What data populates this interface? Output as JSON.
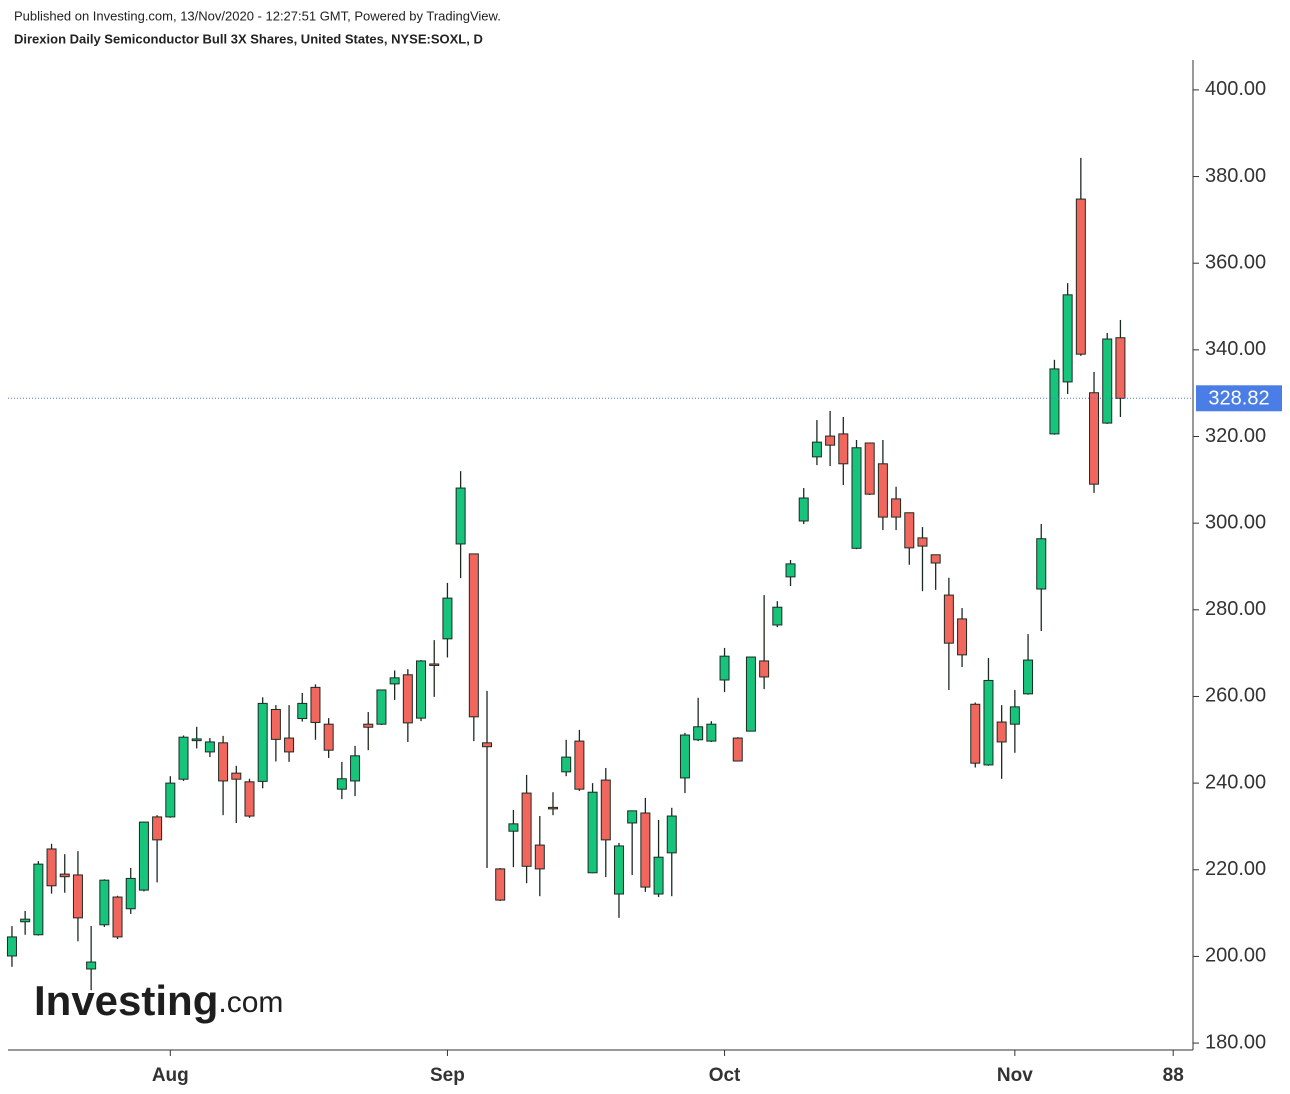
{
  "chart_data": {
    "type": "candlestick",
    "subtitle": "Published on Investing.com, 13/Nov/2020 - 12:27:51 GMT, Powered by TradingView.",
    "title": "Direxion Daily Semiconductor Bull 3X Shares, United States, NYSE:SOXL, D",
    "watermark": {
      "brand": "Investing",
      "suffix": ".com"
    },
    "open": [
      200.1,
      208,
      205,
      224.8,
      219,
      218.8,
      197.1,
      207.3,
      213.7,
      211,
      215.3,
      232.2,
      232.2,
      240.9,
      249.8,
      247.2,
      249.3,
      242.3,
      240.3,
      240.4,
      257,
      250.4,
      254.9,
      262.1,
      253.6,
      238.6,
      240.5,
      253.6,
      253.6,
      262.9,
      265,
      255,
      267.5,
      273.3,
      295.2,
      292.9,
      249.3,
      220.2,
      228.9,
      237.7,
      225.7,
      234.4,
      242.6,
      249.7,
      219.3,
      240.7,
      214.4,
      230.8,
      233.1,
      214.4,
      223.9,
      241.2,
      250,
      249.7,
      263.8,
      250.4,
      252,
      268.2,
      276.5,
      287.6,
      300.5,
      315.3,
      320.1,
      320.6,
      294.2,
      318.5,
      313.7,
      305.6,
      302.4,
      296.6,
      292.7,
      283.4,
      277.9,
      258.2,
      244.2,
      254.1,
      253.6,
      260.6,
      284.8,
      320.6,
      332.6,
      374.8,
      330.1,
      323.1,
      342.8
    ],
    "high": [
      207,
      210.5,
      222,
      226,
      223.6,
      224.3,
      207,
      217.8,
      214,
      220.4,
      231.1,
      232.6,
      241.6,
      251,
      253,
      250.4,
      250.9,
      244,
      241,
      259.8,
      258,
      258,
      260.8,
      262.8,
      255,
      244.9,
      248.6,
      256.4,
      261.6,
      266,
      266.3,
      268.4,
      273,
      286.2,
      312,
      293,
      261.3,
      220.4,
      233.8,
      241.9,
      232.4,
      237.9,
      250,
      252.3,
      240,
      243.5,
      226.2,
      233.6,
      236.6,
      231.5,
      234.3,
      251.6,
      259.7,
      254.3,
      271.2,
      250.6,
      269.1,
      283.4,
      282,
      291.5,
      308.1,
      323.8,
      325.9,
      324.5,
      319.2,
      318.6,
      319.2,
      308.4,
      302.4,
      299.1,
      292.7,
      287.4,
      280.4,
      258.6,
      268.9,
      258,
      261.5,
      274.4,
      299.8,
      337.7,
      355.4,
      384.3,
      334.9,
      343.9,
      346.9
    ],
    "low": [
      197.6,
      205,
      204.8,
      214.5,
      214.7,
      203.5,
      192.2,
      206.8,
      204,
      209.8,
      215,
      217.1,
      232,
      240.5,
      248,
      246,
      232.6,
      230.8,
      232,
      238.8,
      245,
      244.9,
      254.2,
      250,
      245.8,
      236.3,
      237,
      247.6,
      253.4,
      259.2,
      249.5,
      254.3,
      259.9,
      269,
      287.3,
      249.7,
      220.4,
      212.8,
      220.6,
      216.9,
      213.9,
      232.6,
      241.6,
      238.2,
      219.2,
      218.3,
      208.9,
      218.8,
      214.9,
      213.7,
      213.9,
      237.7,
      249.7,
      249.5,
      261,
      245,
      252,
      261.7,
      276,
      285.5,
      299.8,
      313.4,
      313.2,
      308.8,
      294,
      306.5,
      298.4,
      298.4,
      290.4,
      284.3,
      284.6,
      261.5,
      266.8,
      243.6,
      244,
      241,
      247,
      260.4,
      275.1,
      320.4,
      329.8,
      338.6,
      307,
      322.9,
      324.5
    ],
    "close": [
      204.5,
      208.6,
      221.3,
      216.3,
      218.4,
      208.9,
      198.7,
      217.6,
      204.5,
      218,
      231,
      226.9,
      240,
      250.6,
      250.2,
      249.5,
      240.5,
      240.9,
      232.4,
      258.4,
      250.1,
      247.2,
      258.4,
      254,
      247.6,
      241,
      246.3,
      252.9,
      261.5,
      264.3,
      253.9,
      268.2,
      267.3,
      282.7,
      308.1,
      255.3,
      248.4,
      213,
      230.6,
      220.8,
      220.2,
      234.2,
      246,
      238.6,
      237.9,
      226.9,
      225.5,
      233.6,
      216,
      222.9,
      232.4,
      251.1,
      253,
      253.6,
      269.3,
      245.1,
      269.1,
      264.5,
      280.6,
      290.6,
      305.8,
      318.7,
      318,
      313.7,
      317.4,
      306.7,
      301.4,
      301.4,
      294.3,
      294.7,
      290.8,
      272.3,
      269.6,
      244.6,
      263.7,
      249.5,
      257.6,
      268.4,
      296.4,
      335.6,
      352.7,
      339,
      309,
      342.5,
      328.82
    ],
    "up_color": "#16c47c",
    "down_color": "#f2675d",
    "last_price": 328.82,
    "last_price_color": "#4a7ee6",
    "ylim": [
      178.4,
      406.9
    ],
    "yticks": [
      {
        "value": 180,
        "label": "180.00"
      },
      {
        "value": 200,
        "label": "200.00"
      },
      {
        "value": 220,
        "label": "220.00"
      },
      {
        "value": 240,
        "label": "240.00"
      },
      {
        "value": 260,
        "label": "260.00"
      },
      {
        "value": 280,
        "label": "280.00"
      },
      {
        "value": 300,
        "label": "300.00"
      },
      {
        "value": 320,
        "label": "320.00"
      },
      {
        "value": 340,
        "label": "340.00"
      },
      {
        "value": 360,
        "label": "360.00"
      },
      {
        "value": 380,
        "label": "380.00"
      },
      {
        "value": 400,
        "label": "400.00"
      }
    ],
    "xlim": [
      -0.3,
      89.5
    ],
    "xticks": [
      {
        "value": 12,
        "label": "Aug"
      },
      {
        "value": 33,
        "label": "Sep"
      },
      {
        "value": 54,
        "label": "Oct"
      },
      {
        "value": 76,
        "label": "Nov"
      },
      88
    ]
  }
}
